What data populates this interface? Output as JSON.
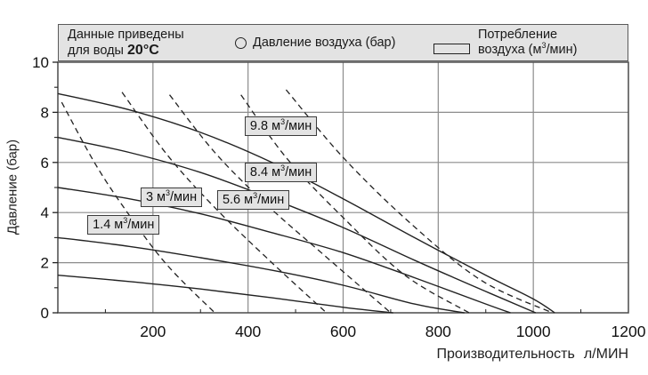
{
  "legend": {
    "note_line1": "Данные приведены",
    "note_line2_prefix": "для воды",
    "note_temp": "20°C",
    "pressure_label": "Давление воздуха (бар)",
    "consumption_line1": "Потребление",
    "consumption_line2_prefix": "воздуха (м",
    "consumption_sup": "3",
    "consumption_line2_suffix": "/мин)"
  },
  "y_axis": {
    "title": "Давление (бар)"
  },
  "x_axis": {
    "title_main": "Производительность",
    "title_unit": "л/МИН"
  },
  "unit": {
    "base": " м",
    "sup": "3",
    "rest": "/мин"
  },
  "chart_data": {
    "type": "line",
    "title": "",
    "xlabel": "Производительность, л/МИН",
    "ylabel": "Давление (бар)",
    "xlim": [
      0,
      1200
    ],
    "ylim": [
      0,
      10
    ],
    "x_ticks": [
      200,
      400,
      600,
      800,
      1000,
      1200
    ],
    "y_ticks": [
      0,
      2,
      4,
      6,
      8,
      10
    ],
    "y_minor_ticks": [
      1,
      3,
      5,
      7,
      9
    ],
    "x_minor_step": 100,
    "grid": true,
    "legend_position": "top",
    "solid_series_meaning": "Давление воздуха (бар)",
    "dashed_series_meaning": "Потребление воздуха (м3/мин)",
    "solid_curves": [
      {
        "name": "pump-curve-1",
        "points": [
          [
            0,
            8.75
          ],
          [
            150,
            8.1
          ],
          [
            300,
            7.2
          ],
          [
            450,
            6.0
          ],
          [
            600,
            4.55
          ],
          [
            750,
            3.0
          ],
          [
            900,
            1.5
          ],
          [
            1000,
            0.55
          ],
          [
            1045,
            0
          ]
        ]
      },
      {
        "name": "pump-curve-2",
        "points": [
          [
            0,
            7.0
          ],
          [
            150,
            6.4
          ],
          [
            300,
            5.6
          ],
          [
            450,
            4.55
          ],
          [
            600,
            3.4
          ],
          [
            750,
            2.1
          ],
          [
            900,
            0.85
          ],
          [
            1005,
            0
          ]
        ]
      },
      {
        "name": "pump-curve-3",
        "points": [
          [
            0,
            5.0
          ],
          [
            150,
            4.55
          ],
          [
            300,
            3.95
          ],
          [
            450,
            3.2
          ],
          [
            600,
            2.4
          ],
          [
            750,
            1.4
          ],
          [
            900,
            0.35
          ],
          [
            952,
            0
          ]
        ]
      },
      {
        "name": "pump-curve-4",
        "points": [
          [
            0,
            3.0
          ],
          [
            150,
            2.65
          ],
          [
            300,
            2.2
          ],
          [
            450,
            1.7
          ],
          [
            600,
            1.1
          ],
          [
            750,
            0.35
          ],
          [
            855,
            0
          ]
        ]
      },
      {
        "name": "pump-curve-5",
        "points": [
          [
            0,
            1.5
          ],
          [
            150,
            1.25
          ],
          [
            300,
            0.95
          ],
          [
            450,
            0.6
          ],
          [
            600,
            0.22
          ],
          [
            705,
            0
          ]
        ]
      }
    ],
    "dashed_curves": [
      {
        "value": "1.4",
        "points": [
          [
            8,
            8.4
          ],
          [
            80,
            5.9
          ],
          [
            150,
            3.9
          ],
          [
            230,
            1.9
          ],
          [
            330,
            0
          ]
        ]
      },
      {
        "value": "3",
        "points": [
          [
            135,
            8.8
          ],
          [
            230,
            6.3
          ],
          [
            330,
            4.2
          ],
          [
            450,
            2.0
          ],
          [
            565,
            0
          ]
        ]
      },
      {
        "value": "5.6",
        "points": [
          [
            235,
            8.7
          ],
          [
            330,
            6.4
          ],
          [
            440,
            4.3
          ],
          [
            560,
            2.3
          ],
          [
            700,
            0
          ]
        ]
      },
      {
        "value": "8.4",
        "points": [
          [
            385,
            8.7
          ],
          [
            480,
            6.2
          ],
          [
            600,
            3.8
          ],
          [
            730,
            1.5
          ],
          [
            865,
            0
          ]
        ]
      },
      {
        "value": "9.8",
        "points": [
          [
            480,
            8.9
          ],
          [
            600,
            6.2
          ],
          [
            740,
            3.6
          ],
          [
            890,
            1.3
          ],
          [
            1040,
            0
          ]
        ]
      }
    ],
    "annotations": [
      {
        "value": "1.4",
        "q": 62,
        "p": 3.9
      },
      {
        "value": "3",
        "q": 174,
        "p": 5.0
      },
      {
        "value": "5.6",
        "q": 335,
        "p": 4.89
      },
      {
        "value": "8.4",
        "q": 393,
        "p": 5.99
      },
      {
        "value": "9.8",
        "q": 393,
        "p": 7.84
      }
    ]
  },
  "colors": {
    "curve": "#222222",
    "grid": "#8c8c8c",
    "border": "#4a4a4a",
    "label_box_bg": "#e3e3e3",
    "legend_bg": "#e3e3e3"
  }
}
